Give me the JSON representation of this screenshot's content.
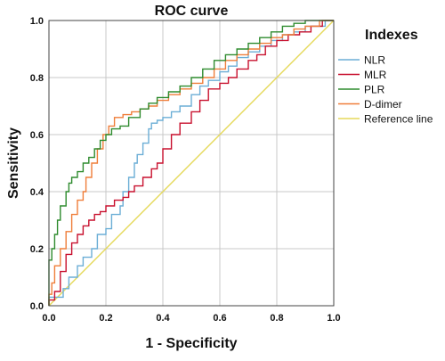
{
  "chart_data": {
    "type": "line",
    "title": "ROC curve",
    "xlabel": "1 - Specificity",
    "ylabel": "Sensitivity",
    "xlim": [
      0,
      1
    ],
    "ylim": [
      0,
      1
    ],
    "xticks": [
      "0.0",
      "0.2",
      "0.4",
      "0.6",
      "0.8",
      "1.0"
    ],
    "yticks": [
      "0.0",
      "0.2",
      "0.4",
      "0.6",
      "0.8",
      "1.0"
    ],
    "grid": true,
    "legend": {
      "title": "Indexes",
      "position": "right"
    },
    "series": [
      {
        "name": "NLR",
        "color": "#6baed6",
        "points": [
          [
            0,
            0
          ],
          [
            0.02,
            0.03
          ],
          [
            0.05,
            0.03
          ],
          [
            0.07,
            0.06
          ],
          [
            0.1,
            0.1
          ],
          [
            0.12,
            0.14
          ],
          [
            0.15,
            0.17
          ],
          [
            0.17,
            0.2
          ],
          [
            0.2,
            0.25
          ],
          [
            0.22,
            0.27
          ],
          [
            0.25,
            0.32
          ],
          [
            0.26,
            0.35
          ],
          [
            0.28,
            0.4
          ],
          [
            0.3,
            0.45
          ],
          [
            0.31,
            0.5
          ],
          [
            0.33,
            0.53
          ],
          [
            0.35,
            0.57
          ],
          [
            0.36,
            0.62
          ],
          [
            0.38,
            0.64
          ],
          [
            0.4,
            0.65
          ],
          [
            0.43,
            0.66
          ],
          [
            0.46,
            0.68
          ],
          [
            0.5,
            0.7
          ],
          [
            0.53,
            0.74
          ],
          [
            0.56,
            0.77
          ],
          [
            0.6,
            0.79
          ],
          [
            0.63,
            0.82
          ],
          [
            0.66,
            0.84
          ],
          [
            0.7,
            0.87
          ],
          [
            0.74,
            0.89
          ],
          [
            0.78,
            0.91
          ],
          [
            0.82,
            0.93
          ],
          [
            0.86,
            0.95
          ],
          [
            0.9,
            0.96
          ],
          [
            0.93,
            0.98
          ],
          [
            0.97,
            0.98
          ],
          [
            1,
            1
          ]
        ]
      },
      {
        "name": "MLR",
        "color": "#c8102e",
        "points": [
          [
            0,
            0
          ],
          [
            0.02,
            0.02
          ],
          [
            0.04,
            0.05
          ],
          [
            0.06,
            0.12
          ],
          [
            0.08,
            0.18
          ],
          [
            0.1,
            0.22
          ],
          [
            0.12,
            0.25
          ],
          [
            0.14,
            0.28
          ],
          [
            0.16,
            0.3
          ],
          [
            0.18,
            0.32
          ],
          [
            0.2,
            0.33
          ],
          [
            0.23,
            0.35
          ],
          [
            0.26,
            0.37
          ],
          [
            0.28,
            0.38
          ],
          [
            0.3,
            0.4
          ],
          [
            0.33,
            0.42
          ],
          [
            0.36,
            0.45
          ],
          [
            0.38,
            0.48
          ],
          [
            0.4,
            0.5
          ],
          [
            0.43,
            0.55
          ],
          [
            0.46,
            0.6
          ],
          [
            0.5,
            0.64
          ],
          [
            0.53,
            0.68
          ],
          [
            0.56,
            0.72
          ],
          [
            0.6,
            0.76
          ],
          [
            0.63,
            0.78
          ],
          [
            0.66,
            0.8
          ],
          [
            0.7,
            0.83
          ],
          [
            0.73,
            0.86
          ],
          [
            0.76,
            0.88
          ],
          [
            0.8,
            0.91
          ],
          [
            0.84,
            0.93
          ],
          [
            0.88,
            0.95
          ],
          [
            0.92,
            0.96
          ],
          [
            0.96,
            0.98
          ],
          [
            1,
            1
          ]
        ]
      },
      {
        "name": "PLR",
        "color": "#2e8b2e",
        "points": [
          [
            0,
            0
          ],
          [
            0,
            0.12
          ],
          [
            0.01,
            0.16
          ],
          [
            0.02,
            0.2
          ],
          [
            0.03,
            0.25
          ],
          [
            0.04,
            0.3
          ],
          [
            0.06,
            0.35
          ],
          [
            0.07,
            0.4
          ],
          [
            0.08,
            0.43
          ],
          [
            0.1,
            0.45
          ],
          [
            0.12,
            0.47
          ],
          [
            0.14,
            0.5
          ],
          [
            0.16,
            0.52
          ],
          [
            0.18,
            0.55
          ],
          [
            0.2,
            0.58
          ],
          [
            0.22,
            0.6
          ],
          [
            0.25,
            0.62
          ],
          [
            0.28,
            0.63
          ],
          [
            0.32,
            0.66
          ],
          [
            0.35,
            0.69
          ],
          [
            0.38,
            0.71
          ],
          [
            0.42,
            0.73
          ],
          [
            0.46,
            0.75
          ],
          [
            0.5,
            0.77
          ],
          [
            0.54,
            0.8
          ],
          [
            0.58,
            0.83
          ],
          [
            0.62,
            0.86
          ],
          [
            0.66,
            0.88
          ],
          [
            0.7,
            0.9
          ],
          [
            0.74,
            0.92
          ],
          [
            0.78,
            0.94
          ],
          [
            0.82,
            0.96
          ],
          [
            0.86,
            0.98
          ],
          [
            0.9,
            0.99
          ],
          [
            0.95,
            1
          ],
          [
            1,
            1
          ]
        ]
      },
      {
        "name": "D-dimer",
        "color": "#ef7e3a",
        "points": [
          [
            0,
            0
          ],
          [
            0.01,
            0.04
          ],
          [
            0.02,
            0.08
          ],
          [
            0.04,
            0.14
          ],
          [
            0.06,
            0.2
          ],
          [
            0.08,
            0.26
          ],
          [
            0.1,
            0.32
          ],
          [
            0.12,
            0.37
          ],
          [
            0.13,
            0.4
          ],
          [
            0.15,
            0.45
          ],
          [
            0.17,
            0.5
          ],
          [
            0.19,
            0.55
          ],
          [
            0.21,
            0.6
          ],
          [
            0.23,
            0.63
          ],
          [
            0.26,
            0.66
          ],
          [
            0.29,
            0.67
          ],
          [
            0.32,
            0.68
          ],
          [
            0.35,
            0.69
          ],
          [
            0.38,
            0.7
          ],
          [
            0.42,
            0.72
          ],
          [
            0.46,
            0.74
          ],
          [
            0.5,
            0.76
          ],
          [
            0.54,
            0.78
          ],
          [
            0.58,
            0.8
          ],
          [
            0.62,
            0.83
          ],
          [
            0.66,
            0.86
          ],
          [
            0.7,
            0.88
          ],
          [
            0.74,
            0.9
          ],
          [
            0.78,
            0.92
          ],
          [
            0.82,
            0.94
          ],
          [
            0.86,
            0.95
          ],
          [
            0.9,
            0.97
          ],
          [
            0.95,
            0.98
          ],
          [
            1,
            1
          ]
        ]
      },
      {
        "name": "Reference line",
        "color": "#e5d95a",
        "points": [
          [
            0,
            0
          ],
          [
            1,
            1
          ]
        ]
      }
    ]
  }
}
